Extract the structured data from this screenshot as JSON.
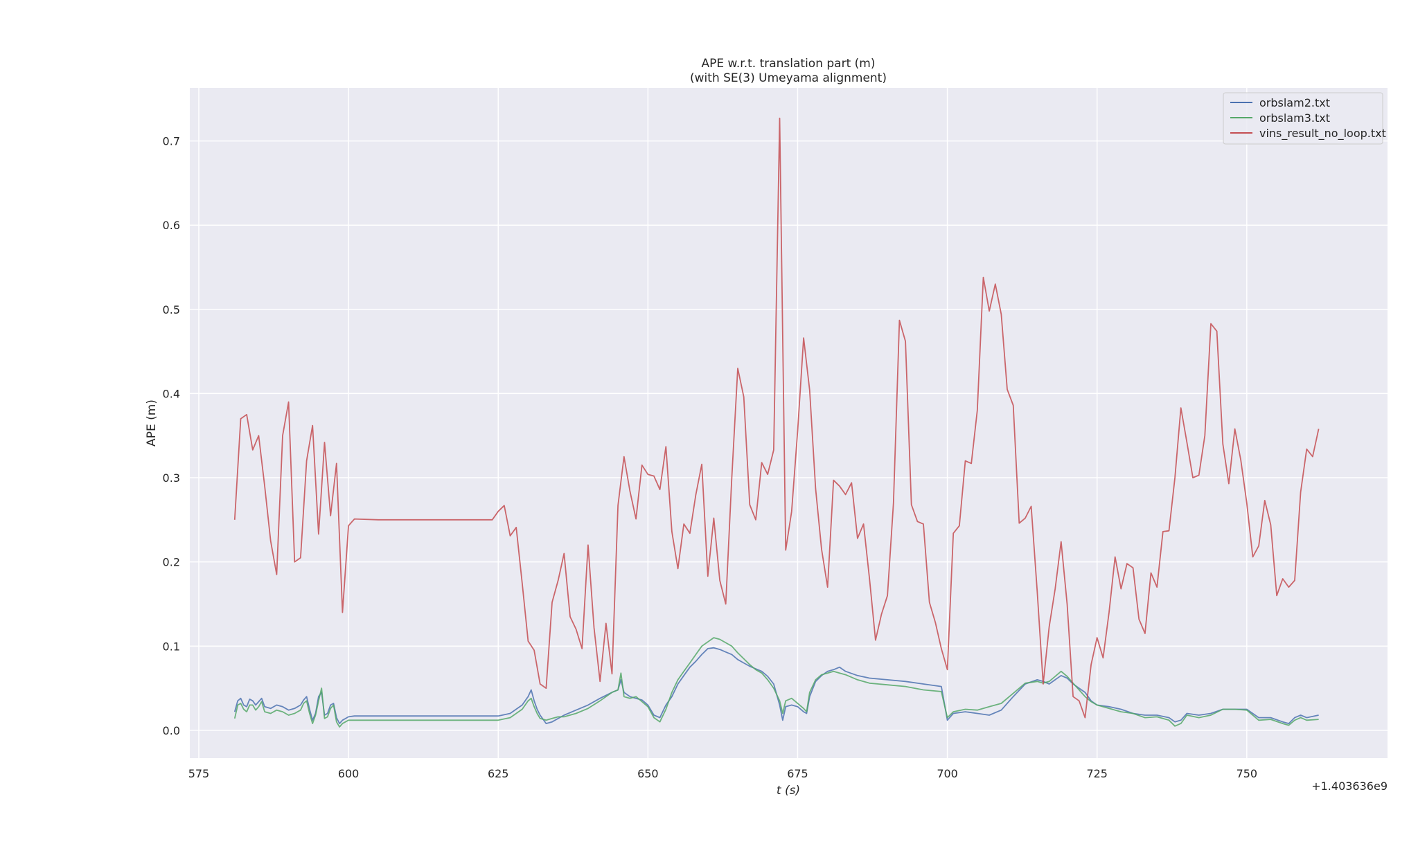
{
  "chart_data": {
    "type": "line",
    "title": "APE w.r.t. translation part (m)",
    "subtitle": "(with SE(3) Umeyama alignment)",
    "xlabel": "t (s)",
    "ylabel": "APE (m)",
    "x_offset_label": "+1.403636e9",
    "xlim": [
      573.5,
      773.5
    ],
    "ylim": [
      -0.033,
      0.763
    ],
    "xticks": [
      575,
      600,
      625,
      650,
      675,
      700,
      725,
      750
    ],
    "yticks": [
      0.0,
      0.1,
      0.2,
      0.3,
      0.4,
      0.5,
      0.6,
      0.7
    ],
    "xtick_labels": [
      "575",
      "600",
      "625",
      "650",
      "675",
      "700",
      "725",
      "750"
    ],
    "ytick_labels": [
      "0.0",
      "0.1",
      "0.2",
      "0.3",
      "0.4",
      "0.5",
      "0.6",
      "0.7"
    ],
    "grid": true,
    "legend_position": "top-right",
    "series": [
      {
        "name": "orbslam2.txt",
        "color": "#4c72b0",
        "x": [
          581.0,
          581.5,
          582.0,
          582.5,
          583.0,
          583.5,
          584.0,
          584.5,
          585.0,
          585.5,
          586.0,
          587.0,
          588.0,
          589.0,
          590.0,
          591.0,
          592.0,
          592.5,
          593.0,
          593.5,
          594.0,
          594.5,
          595.0,
          595.5,
          596.0,
          596.5,
          597.0,
          597.5,
          598.0,
          598.5,
          599.0,
          600.0,
          601.0,
          605.0,
          610.0,
          615.0,
          620.0,
          625.0,
          627.0,
          629.0,
          630.0,
          630.5,
          631.0,
          631.5,
          632.0,
          633.0,
          634.0,
          635.0,
          636.0,
          638.0,
          640.0,
          642.0,
          644.0,
          645.0,
          645.5,
          646.0,
          647.0,
          648.0,
          649.0,
          650.0,
          651.0,
          652.0,
          653.0,
          654.0,
          655.0,
          656.0,
          657.0,
          658.0,
          659.0,
          660.0,
          661.0,
          662.0,
          663.0,
          664.0,
          665.0,
          666.0,
          667.0,
          668.0,
          669.0,
          670.0,
          671.0,
          672.0,
          672.5,
          673.0,
          674.0,
          675.0,
          676.0,
          676.5,
          677.0,
          678.0,
          679.0,
          680.0,
          681.0,
          682.0,
          683.0,
          685.0,
          687.0,
          690.0,
          693.0,
          696.0,
          699.0,
          700.0,
          701.0,
          703.0,
          705.0,
          707.0,
          709.0,
          711.0,
          713.0,
          715.0,
          716.0,
          717.0,
          718.0,
          719.0,
          720.0,
          721.0,
          722.0,
          723.0,
          724.0,
          725.0,
          727.0,
          729.0,
          731.0,
          733.0,
          735.0,
          737.0,
          738.0,
          739.0,
          740.0,
          742.0,
          744.0,
          746.0,
          748.0,
          750.0,
          752.0,
          754.0,
          756.0,
          757.0,
          758.0,
          759.0,
          760.0,
          762.0
        ],
        "y": [
          0.022,
          0.035,
          0.038,
          0.03,
          0.028,
          0.037,
          0.035,
          0.03,
          0.034,
          0.038,
          0.028,
          0.026,
          0.03,
          0.028,
          0.024,
          0.026,
          0.03,
          0.036,
          0.04,
          0.025,
          0.012,
          0.02,
          0.04,
          0.045,
          0.018,
          0.02,
          0.03,
          0.032,
          0.015,
          0.008,
          0.012,
          0.016,
          0.017,
          0.017,
          0.017,
          0.017,
          0.017,
          0.017,
          0.02,
          0.03,
          0.04,
          0.048,
          0.035,
          0.025,
          0.018,
          0.008,
          0.01,
          0.014,
          0.018,
          0.024,
          0.03,
          0.038,
          0.045,
          0.048,
          0.06,
          0.045,
          0.04,
          0.038,
          0.036,
          0.03,
          0.018,
          0.015,
          0.03,
          0.04,
          0.055,
          0.065,
          0.075,
          0.082,
          0.09,
          0.097,
          0.098,
          0.096,
          0.093,
          0.09,
          0.084,
          0.08,
          0.076,
          0.073,
          0.07,
          0.064,
          0.055,
          0.03,
          0.012,
          0.028,
          0.03,
          0.028,
          0.022,
          0.02,
          0.04,
          0.058,
          0.065,
          0.07,
          0.072,
          0.075,
          0.07,
          0.065,
          0.062,
          0.06,
          0.058,
          0.055,
          0.052,
          0.012,
          0.02,
          0.022,
          0.02,
          0.018,
          0.024,
          0.04,
          0.055,
          0.06,
          0.058,
          0.055,
          0.06,
          0.065,
          0.062,
          0.055,
          0.05,
          0.045,
          0.035,
          0.03,
          0.028,
          0.025,
          0.02,
          0.018,
          0.018,
          0.015,
          0.01,
          0.012,
          0.02,
          0.018,
          0.02,
          0.025,
          0.025,
          0.025,
          0.015,
          0.015,
          0.01,
          0.008,
          0.015,
          0.018,
          0.015,
          0.018
        ]
      },
      {
        "name": "orbslam3.txt",
        "color": "#55a868",
        "x": [
          581.0,
          581.5,
          582.0,
          582.5,
          583.0,
          583.5,
          584.0,
          584.5,
          585.0,
          585.5,
          586.0,
          587.0,
          588.0,
          589.0,
          590.0,
          591.0,
          592.0,
          592.5,
          593.0,
          593.5,
          594.0,
          594.5,
          595.0,
          595.5,
          596.0,
          596.5,
          597.0,
          597.5,
          598.0,
          598.5,
          599.0,
          600.0,
          601.0,
          605.0,
          610.0,
          615.0,
          620.0,
          625.0,
          627.0,
          629.0,
          630.0,
          630.5,
          631.0,
          631.5,
          632.0,
          633.0,
          634.0,
          635.0,
          636.0,
          638.0,
          640.0,
          642.0,
          644.0,
          645.0,
          645.5,
          646.0,
          647.0,
          648.0,
          649.0,
          650.0,
          651.0,
          652.0,
          653.0,
          654.0,
          655.0,
          656.0,
          657.0,
          658.0,
          659.0,
          660.0,
          661.0,
          662.0,
          663.0,
          664.0,
          665.0,
          666.0,
          667.0,
          668.0,
          669.0,
          670.0,
          671.0,
          672.0,
          672.5,
          673.0,
          674.0,
          675.0,
          676.0,
          676.5,
          677.0,
          678.0,
          679.0,
          680.0,
          681.0,
          682.0,
          683.0,
          685.0,
          687.0,
          690.0,
          693.0,
          696.0,
          699.0,
          700.0,
          701.0,
          703.0,
          705.0,
          707.0,
          709.0,
          711.0,
          713.0,
          715.0,
          716.0,
          717.0,
          718.0,
          719.0,
          720.0,
          721.0,
          722.0,
          723.0,
          724.0,
          725.0,
          727.0,
          729.0,
          731.0,
          733.0,
          735.0,
          737.0,
          738.0,
          739.0,
          740.0,
          742.0,
          744.0,
          746.0,
          748.0,
          750.0,
          752.0,
          754.0,
          756.0,
          757.0,
          758.0,
          759.0,
          760.0,
          762.0
        ],
        "y": [
          0.014,
          0.03,
          0.032,
          0.025,
          0.022,
          0.03,
          0.03,
          0.024,
          0.028,
          0.034,
          0.022,
          0.02,
          0.024,
          0.022,
          0.018,
          0.02,
          0.024,
          0.032,
          0.035,
          0.02,
          0.008,
          0.018,
          0.035,
          0.05,
          0.014,
          0.016,
          0.026,
          0.03,
          0.01,
          0.004,
          0.008,
          0.012,
          0.012,
          0.012,
          0.012,
          0.012,
          0.012,
          0.012,
          0.015,
          0.025,
          0.035,
          0.038,
          0.028,
          0.02,
          0.014,
          0.012,
          0.014,
          0.016,
          0.016,
          0.02,
          0.026,
          0.035,
          0.045,
          0.048,
          0.068,
          0.04,
          0.038,
          0.04,
          0.034,
          0.028,
          0.015,
          0.01,
          0.025,
          0.045,
          0.06,
          0.07,
          0.08,
          0.09,
          0.1,
          0.105,
          0.11,
          0.108,
          0.104,
          0.1,
          0.092,
          0.085,
          0.078,
          0.072,
          0.068,
          0.06,
          0.05,
          0.035,
          0.02,
          0.035,
          0.038,
          0.032,
          0.026,
          0.022,
          0.045,
          0.06,
          0.066,
          0.068,
          0.07,
          0.068,
          0.066,
          0.06,
          0.056,
          0.054,
          0.052,
          0.048,
          0.046,
          0.015,
          0.022,
          0.025,
          0.024,
          0.028,
          0.032,
          0.044,
          0.056,
          0.058,
          0.056,
          0.058,
          0.064,
          0.07,
          0.064,
          0.056,
          0.048,
          0.04,
          0.034,
          0.03,
          0.026,
          0.022,
          0.02,
          0.015,
          0.016,
          0.012,
          0.005,
          0.008,
          0.018,
          0.015,
          0.018,
          0.025,
          0.025,
          0.024,
          0.012,
          0.013,
          0.008,
          0.006,
          0.012,
          0.015,
          0.012,
          0.013
        ]
      },
      {
        "name": "vins_result_no_loop.txt",
        "color": "#c44e52",
        "x": [
          581.0,
          582.0,
          583.0,
          584.0,
          585.0,
          586.0,
          587.0,
          588.0,
          589.0,
          590.0,
          591.0,
          592.0,
          593.0,
          594.0,
          595.0,
          596.0,
          597.0,
          598.0,
          599.0,
          600.0,
          601.0,
          605.0,
          610.0,
          615.0,
          620.0,
          624.0,
          625.0,
          626.0,
          627.0,
          628.0,
          629.0,
          630.0,
          631.0,
          632.0,
          633.0,
          634.0,
          635.0,
          636.0,
          637.0,
          638.0,
          639.0,
          640.0,
          641.0,
          642.0,
          643.0,
          644.0,
          645.0,
          646.0,
          647.0,
          648.0,
          649.0,
          650.0,
          651.0,
          652.0,
          653.0,
          654.0,
          655.0,
          656.0,
          657.0,
          658.0,
          659.0,
          660.0,
          661.0,
          662.0,
          663.0,
          664.0,
          665.0,
          666.0,
          667.0,
          668.0,
          669.0,
          670.0,
          671.0,
          672.0,
          673.0,
          674.0,
          675.0,
          676.0,
          677.0,
          678.0,
          679.0,
          680.0,
          681.0,
          682.0,
          683.0,
          684.0,
          685.0,
          686.0,
          687.0,
          688.0,
          689.0,
          690.0,
          691.0,
          692.0,
          693.0,
          694.0,
          695.0,
          696.0,
          697.0,
          698.0,
          699.0,
          700.0,
          701.0,
          702.0,
          703.0,
          704.0,
          705.0,
          706.0,
          707.0,
          708.0,
          709.0,
          710.0,
          711.0,
          712.0,
          713.0,
          714.0,
          715.0,
          716.0,
          717.0,
          718.0,
          719.0,
          720.0,
          721.0,
          722.0,
          723.0,
          724.0,
          725.0,
          726.0,
          727.0,
          728.0,
          729.0,
          730.0,
          731.0,
          732.0,
          733.0,
          734.0,
          735.0,
          736.0,
          737.0,
          738.0,
          739.0,
          740.0,
          741.0,
          742.0,
          743.0,
          744.0,
          745.0,
          746.0,
          747.0,
          748.0,
          749.0,
          750.0,
          751.0,
          752.0,
          753.0,
          754.0,
          755.0,
          756.0,
          757.0,
          758.0,
          759.0,
          760.0,
          761.0,
          762.0
        ],
        "y": [
          0.25,
          0.37,
          0.375,
          0.333,
          0.35,
          0.29,
          0.225,
          0.185,
          0.35,
          0.39,
          0.2,
          0.205,
          0.32,
          0.362,
          0.233,
          0.342,
          0.255,
          0.317,
          0.14,
          0.243,
          0.251,
          0.25,
          0.25,
          0.25,
          0.25,
          0.25,
          0.26,
          0.267,
          0.231,
          0.241,
          0.175,
          0.106,
          0.095,
          0.055,
          0.05,
          0.152,
          0.178,
          0.21,
          0.135,
          0.12,
          0.097,
          0.22,
          0.122,
          0.058,
          0.127,
          0.067,
          0.267,
          0.325,
          0.284,
          0.251,
          0.315,
          0.304,
          0.302,
          0.286,
          0.337,
          0.236,
          0.192,
          0.245,
          0.234,
          0.28,
          0.316,
          0.183,
          0.252,
          0.178,
          0.15,
          0.3,
          0.43,
          0.396,
          0.268,
          0.25,
          0.318,
          0.304,
          0.333,
          0.727,
          0.214,
          0.26,
          0.356,
          0.466,
          0.404,
          0.287,
          0.215,
          0.17,
          0.297,
          0.29,
          0.28,
          0.294,
          0.228,
          0.245,
          0.18,
          0.107,
          0.138,
          0.16,
          0.27,
          0.487,
          0.462,
          0.268,
          0.248,
          0.245,
          0.152,
          0.128,
          0.097,
          0.072,
          0.234,
          0.243,
          0.32,
          0.317,
          0.38,
          0.538,
          0.498,
          0.53,
          0.494,
          0.405,
          0.386,
          0.246,
          0.252,
          0.266,
          0.165,
          0.055,
          0.123,
          0.168,
          0.224,
          0.15,
          0.04,
          0.035,
          0.015,
          0.078,
          0.11,
          0.086,
          0.14,
          0.206,
          0.168,
          0.198,
          0.193,
          0.132,
          0.115,
          0.187,
          0.17,
          0.236,
          0.237,
          0.3,
          0.383,
          0.342,
          0.3,
          0.303,
          0.35,
          0.483,
          0.474,
          0.34,
          0.293,
          0.358,
          0.321,
          0.27,
          0.206,
          0.219,
          0.273,
          0.244,
          0.16,
          0.18,
          0.17,
          0.178,
          0.283,
          0.334,
          0.325,
          0.358
        ]
      }
    ]
  }
}
